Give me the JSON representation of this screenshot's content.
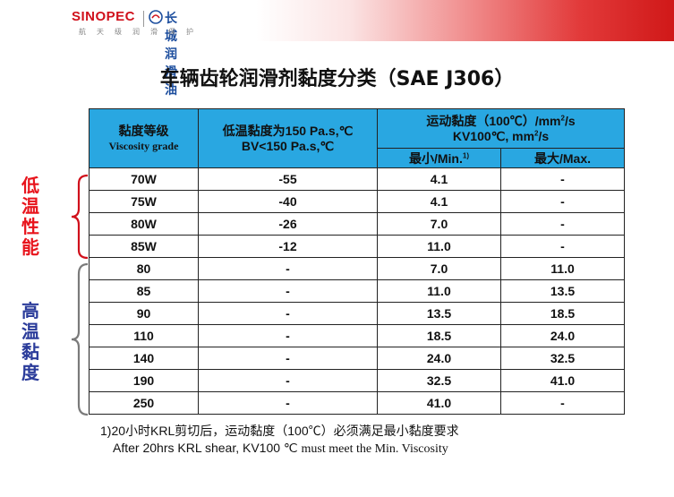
{
  "header": {
    "logo_sinopec": "SINOPEC",
    "logo_greatwall": "长城润滑油",
    "logo_tagline": "航天级润滑保护",
    "colors": {
      "sinopec_red": "#d0101b",
      "greatwall_blue": "#1d4e9e",
      "header_gradient_end": "#d01818"
    }
  },
  "title": "车辆齿轮润滑剂黏度分类（SAE J306）",
  "table": {
    "header": {
      "grade_cn": "黏度等级",
      "grade_en": "Viscosity grade",
      "low_temp_line1": "低温黏度为150 Pa.s,℃",
      "low_temp_line2": "BV<150 Pa.s,℃",
      "kv_line1_pre": "运动黏度（100℃）/mm",
      "kv_line1_sup": "2",
      "kv_line1_post": "/s",
      "kv_line2_pre": "KV100℃, mm",
      "kv_line2_sup": "2",
      "kv_line2_post": "/s",
      "min_label": "最小/Min.",
      "min_sup": "1)",
      "max_label": "最大/Max."
    },
    "rows": [
      {
        "grade": "70W",
        "low_temp": "-55",
        "min": "4.1",
        "max": "-"
      },
      {
        "grade": "75W",
        "low_temp": "-40",
        "min": "4.1",
        "max": "-"
      },
      {
        "grade": "80W",
        "low_temp": "-26",
        "min": "7.0",
        "max": "-"
      },
      {
        "grade": "85W",
        "low_temp": "-12",
        "min": "11.0",
        "max": "-"
      },
      {
        "grade": "80",
        "low_temp": "-",
        "min": "7.0",
        "max": "11.0"
      },
      {
        "grade": "85",
        "low_temp": "-",
        "min": "11.0",
        "max": "13.5"
      },
      {
        "grade": "90",
        "low_temp": "-",
        "min": "13.5",
        "max": "18.5"
      },
      {
        "grade": "110",
        "low_temp": "-",
        "min": "18.5",
        "max": "24.0"
      },
      {
        "grade": "140",
        "low_temp": "-",
        "min": "24.0",
        "max": "32.5"
      },
      {
        "grade": "190",
        "low_temp": "-",
        "min": "32.5",
        "max": "41.0"
      },
      {
        "grade": "250",
        "low_temp": "-",
        "min": "41.0",
        "max": "-"
      }
    ],
    "header_color": "#29a7e1"
  },
  "side_labels": {
    "low_group": {
      "text": [
        "低",
        "温",
        "性",
        "能"
      ],
      "color": "#e8141c"
    },
    "high_group": {
      "text": [
        "高",
        "温",
        "黏",
        "度"
      ],
      "color": "#2a3b9a"
    }
  },
  "footnote": {
    "line1": "1)20小时KRL剪切后，运动黏度（100℃）必须满足最小黏度要求",
    "line2_a": "After 20hrs KRL shear, KV100 ℃ ",
    "line2_b": "must meet the Min. Viscosity"
  }
}
